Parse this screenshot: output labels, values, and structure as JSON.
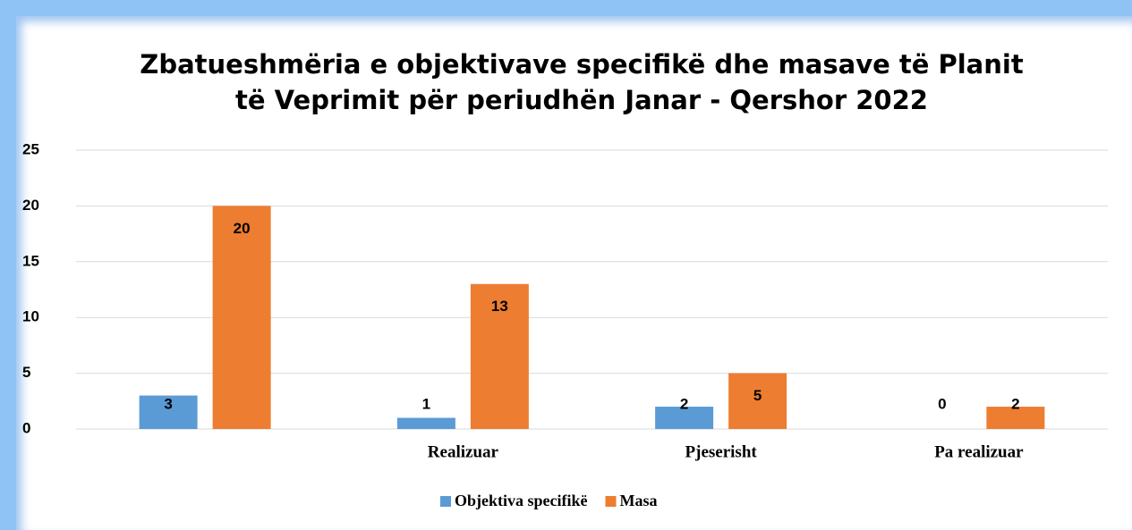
{
  "chart_data": {
    "type": "bar",
    "title": "Zbatueshmëria e objektivave specifikë dhe masave të Planit të Veprimit për periudhën Janar - Qershor 2022",
    "categories": [
      null,
      "Realizuar",
      "Pjeserisht",
      "Pa realizuar"
    ],
    "series": [
      {
        "name": "Objektiva specifikë",
        "color": "#5b9bd5",
        "values": [
          3,
          1,
          2,
          0
        ]
      },
      {
        "name": "Masa",
        "color": "#ed7d31",
        "values": [
          20,
          13,
          5,
          2
        ]
      }
    ],
    "ylim": [
      0,
      25
    ],
    "yticks": [
      0,
      5,
      10,
      15,
      20,
      25
    ],
    "grid": true,
    "legend": "bottom"
  }
}
